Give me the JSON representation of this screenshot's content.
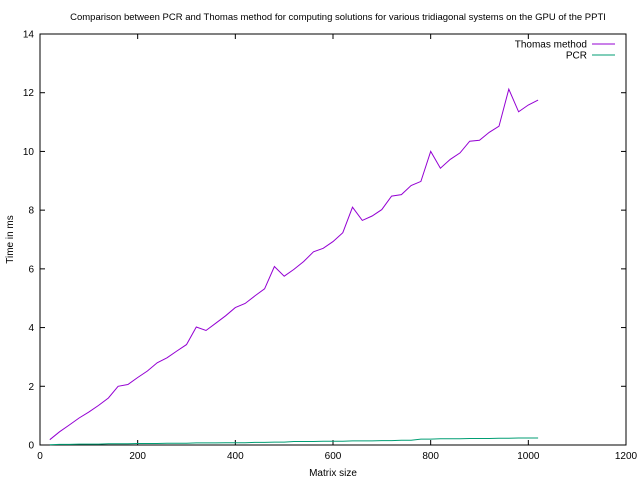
{
  "chart_data": {
    "type": "line",
    "title": "Comparison between PCR and Thomas method for computing solutions for various tridiagonal systems on the GPU of the PPTI",
    "xlabel": "Matrix size",
    "ylabel": "Time in ms",
    "xlim": [
      0,
      1200
    ],
    "ylim": [
      0,
      14
    ],
    "xticks": [
      0,
      200,
      400,
      600,
      800,
      1000,
      1200
    ],
    "yticks": [
      0,
      2,
      4,
      6,
      8,
      10,
      12,
      14
    ],
    "grid": false,
    "legend_position": "top-right",
    "x": [
      20,
      40,
      60,
      80,
      100,
      120,
      140,
      160,
      180,
      200,
      220,
      240,
      260,
      280,
      300,
      320,
      340,
      360,
      380,
      400,
      420,
      440,
      460,
      480,
      500,
      520,
      540,
      560,
      580,
      600,
      620,
      640,
      660,
      680,
      700,
      720,
      740,
      760,
      780,
      800,
      820,
      840,
      860,
      880,
      900,
      920,
      940,
      960,
      980,
      1000,
      1020
    ],
    "series": [
      {
        "name": "Thomas method",
        "color": "#9400d3",
        "values": [
          0.18,
          0.45,
          0.68,
          0.92,
          1.12,
          1.35,
          1.6,
          2.0,
          2.06,
          2.3,
          2.52,
          2.8,
          2.97,
          3.2,
          3.42,
          4.02,
          3.9,
          4.15,
          4.4,
          4.68,
          4.82,
          5.08,
          5.32,
          6.08,
          5.75,
          5.98,
          6.25,
          6.58,
          6.7,
          6.93,
          7.23,
          8.1,
          7.65,
          7.8,
          8.02,
          8.48,
          8.53,
          8.84,
          8.98,
          10.0,
          9.43,
          9.73,
          9.95,
          10.35,
          10.38,
          10.65,
          10.86,
          12.12,
          11.35,
          11.58,
          11.75
        ]
      },
      {
        "name": "PCR",
        "color": "#009e73",
        "values": [
          0.01,
          0.02,
          0.02,
          0.03,
          0.03,
          0.03,
          0.04,
          0.04,
          0.04,
          0.05,
          0.05,
          0.05,
          0.06,
          0.06,
          0.06,
          0.07,
          0.07,
          0.07,
          0.08,
          0.08,
          0.08,
          0.09,
          0.09,
          0.1,
          0.1,
          0.12,
          0.12,
          0.12,
          0.13,
          0.13,
          0.13,
          0.14,
          0.14,
          0.14,
          0.15,
          0.15,
          0.16,
          0.16,
          0.2,
          0.2,
          0.21,
          0.21,
          0.21,
          0.22,
          0.22,
          0.22,
          0.23,
          0.23,
          0.24,
          0.24,
          0.24
        ]
      }
    ]
  }
}
